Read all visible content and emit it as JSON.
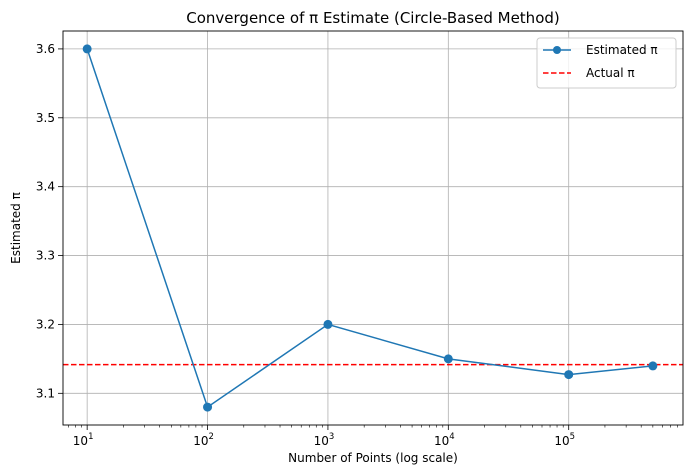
{
  "chart_data": {
    "type": "line",
    "title": "Convergence of π Estimate (Circle-Based Method)",
    "xlabel": "Number of Points (log scale)",
    "ylabel": "Estimated π",
    "xscale": "log",
    "xlim": [
      6.3,
      890000
    ],
    "ylim": [
      3.054,
      3.626
    ],
    "x_ticks": [
      {
        "base": "10",
        "exp": "1",
        "value": 10
      },
      {
        "base": "10",
        "exp": "2",
        "value": 100
      },
      {
        "base": "10",
        "exp": "3",
        "value": 1000
      },
      {
        "base": "10",
        "exp": "4",
        "value": 10000
      },
      {
        "base": "10",
        "exp": "5",
        "value": 100000
      }
    ],
    "y_ticks": [
      "3.1",
      "3.2",
      "3.3",
      "3.4",
      "3.5",
      "3.6"
    ],
    "grid": true,
    "legend_position": "top-right",
    "series": [
      {
        "name": "Estimated π",
        "style": "solid line with circle markers",
        "color": "#1f77b4",
        "x": [
          10,
          100,
          1000,
          10000,
          100000,
          500000
        ],
        "y": [
          3.6,
          3.08,
          3.2,
          3.15,
          3.1272,
          3.1398
        ]
      }
    ],
    "reference_lines": [
      {
        "name": "Actual π",
        "orientation": "horizontal",
        "value": 3.14159,
        "style": "dashed",
        "color": "#ff0000"
      }
    ]
  }
}
